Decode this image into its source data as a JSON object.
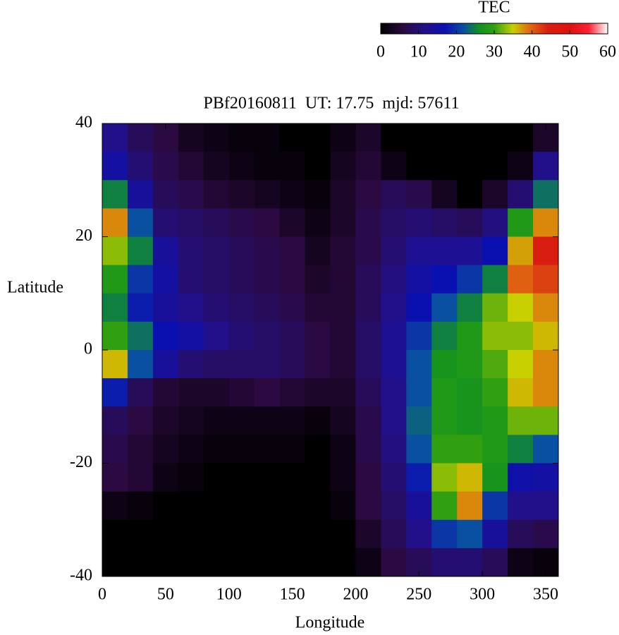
{
  "chart_data": {
    "type": "heatmap",
    "title": "PBf20160811  UT: 17.75  mjd: 57611",
    "x_label": "Longitude",
    "y_label": "Latitude",
    "colorbar_label": "TEC",
    "xlim": [
      0,
      360
    ],
    "ylim": [
      -40,
      40
    ],
    "xticks": [
      0,
      50,
      100,
      150,
      200,
      250,
      300,
      350
    ],
    "yticks": [
      -40,
      -20,
      0,
      20,
      40
    ],
    "clim": [
      0,
      60
    ],
    "cticks": [
      0,
      10,
      20,
      30,
      40,
      50,
      60
    ],
    "colormap": [
      [
        0,
        "#000000"
      ],
      [
        6,
        "#2a0a40"
      ],
      [
        12,
        "#22108a"
      ],
      [
        17,
        "#0a10b0"
      ],
      [
        22,
        "#0a50a0"
      ],
      [
        26,
        "#109020"
      ],
      [
        30,
        "#30a010"
      ],
      [
        35,
        "#c8d000"
      ],
      [
        39,
        "#e07010"
      ],
      [
        44,
        "#d82010"
      ],
      [
        50,
        "#e01010"
      ],
      [
        55,
        "#ff2030"
      ],
      [
        60,
        "#ffffff"
      ]
    ],
    "x": [
      10,
      30,
      50,
      70,
      90,
      110,
      130,
      150,
      170,
      190,
      210,
      230,
      250,
      270,
      290,
      310,
      330,
      350
    ],
    "y": [
      37.5,
      32.5,
      27.5,
      22.5,
      17.5,
      12.5,
      7.5,
      2.5,
      -2.5,
      -7.5,
      -12.5,
      -17.5,
      -22.5,
      -27.5,
      -32.5,
      -37.5
    ],
    "z": [
      [
        12,
        15,
        25,
        38,
        33,
        28,
        25,
        30,
        36,
        18,
        8,
        7,
        6,
        2,
        0,
        0
      ],
      [
        8,
        10,
        14,
        22,
        25,
        20,
        18,
        24,
        22,
        8,
        6,
        5,
        5,
        1,
        0,
        0
      ],
      [
        6,
        7,
        8,
        10,
        14,
        15,
        14,
        17,
        14,
        5,
        4,
        3,
        2,
        0,
        0,
        0
      ],
      [
        3,
        5,
        7,
        9,
        10,
        10,
        12,
        15,
        10,
        4,
        3,
        2,
        1,
        0,
        0,
        0
      ],
      [
        2,
        3,
        5,
        8,
        9,
        9,
        10,
        12,
        9,
        4,
        2,
        1,
        0,
        0,
        0,
        0
      ],
      [
        1,
        2,
        4,
        7,
        8,
        8,
        9,
        10,
        9,
        5,
        2,
        1,
        0,
        0,
        0,
        0
      ],
      [
        1,
        1,
        3,
        6,
        7,
        7,
        8,
        9,
        9,
        6,
        2,
        1,
        0,
        0,
        0,
        0
      ],
      [
        0,
        1,
        2,
        4,
        6,
        6,
        7,
        8,
        8,
        5,
        2,
        1,
        0,
        0,
        0,
        0
      ],
      [
        0,
        0,
        1,
        2,
        3,
        4,
        5,
        6,
        6,
        4,
        1,
        0,
        0,
        0,
        0,
        0
      ],
      [
        2,
        3,
        4,
        4,
        5,
        5,
        5,
        5,
        5,
        4,
        3,
        2,
        2,
        1,
        0,
        0
      ],
      [
        4,
        5,
        6,
        7,
        7,
        8,
        8,
        9,
        9,
        8,
        7,
        7,
        6,
        6,
        4,
        2
      ],
      [
        0,
        2,
        8,
        9,
        10,
        11,
        12,
        13,
        13,
        12,
        12,
        11,
        10,
        9,
        8,
        6
      ],
      [
        0,
        0,
        7,
        10,
        13,
        15,
        17,
        20,
        22,
        22,
        23,
        22,
        18,
        14,
        12,
        8
      ],
      [
        0,
        0,
        3,
        9,
        13,
        17,
        22,
        25,
        27,
        28,
        28,
        30,
        33,
        30,
        20,
        10
      ],
      [
        0,
        0,
        0,
        8,
        13,
        20,
        25,
        28,
        28,
        27,
        27,
        30,
        36,
        38,
        22,
        10
      ],
      [
        0,
        0,
        4,
        11,
        17,
        25,
        32,
        33,
        31,
        30,
        28,
        28,
        27,
        20,
        14,
        8
      ],
      [
        0,
        2,
        10,
        28,
        37,
        40,
        35,
        33,
        35,
        36,
        32,
        25,
        16,
        12,
        8,
        2
      ],
      [
        4,
        12,
        24,
        38,
        45,
        42,
        38,
        36,
        38,
        38,
        32,
        22,
        15,
        12,
        7,
        1
      ]
    ]
  }
}
